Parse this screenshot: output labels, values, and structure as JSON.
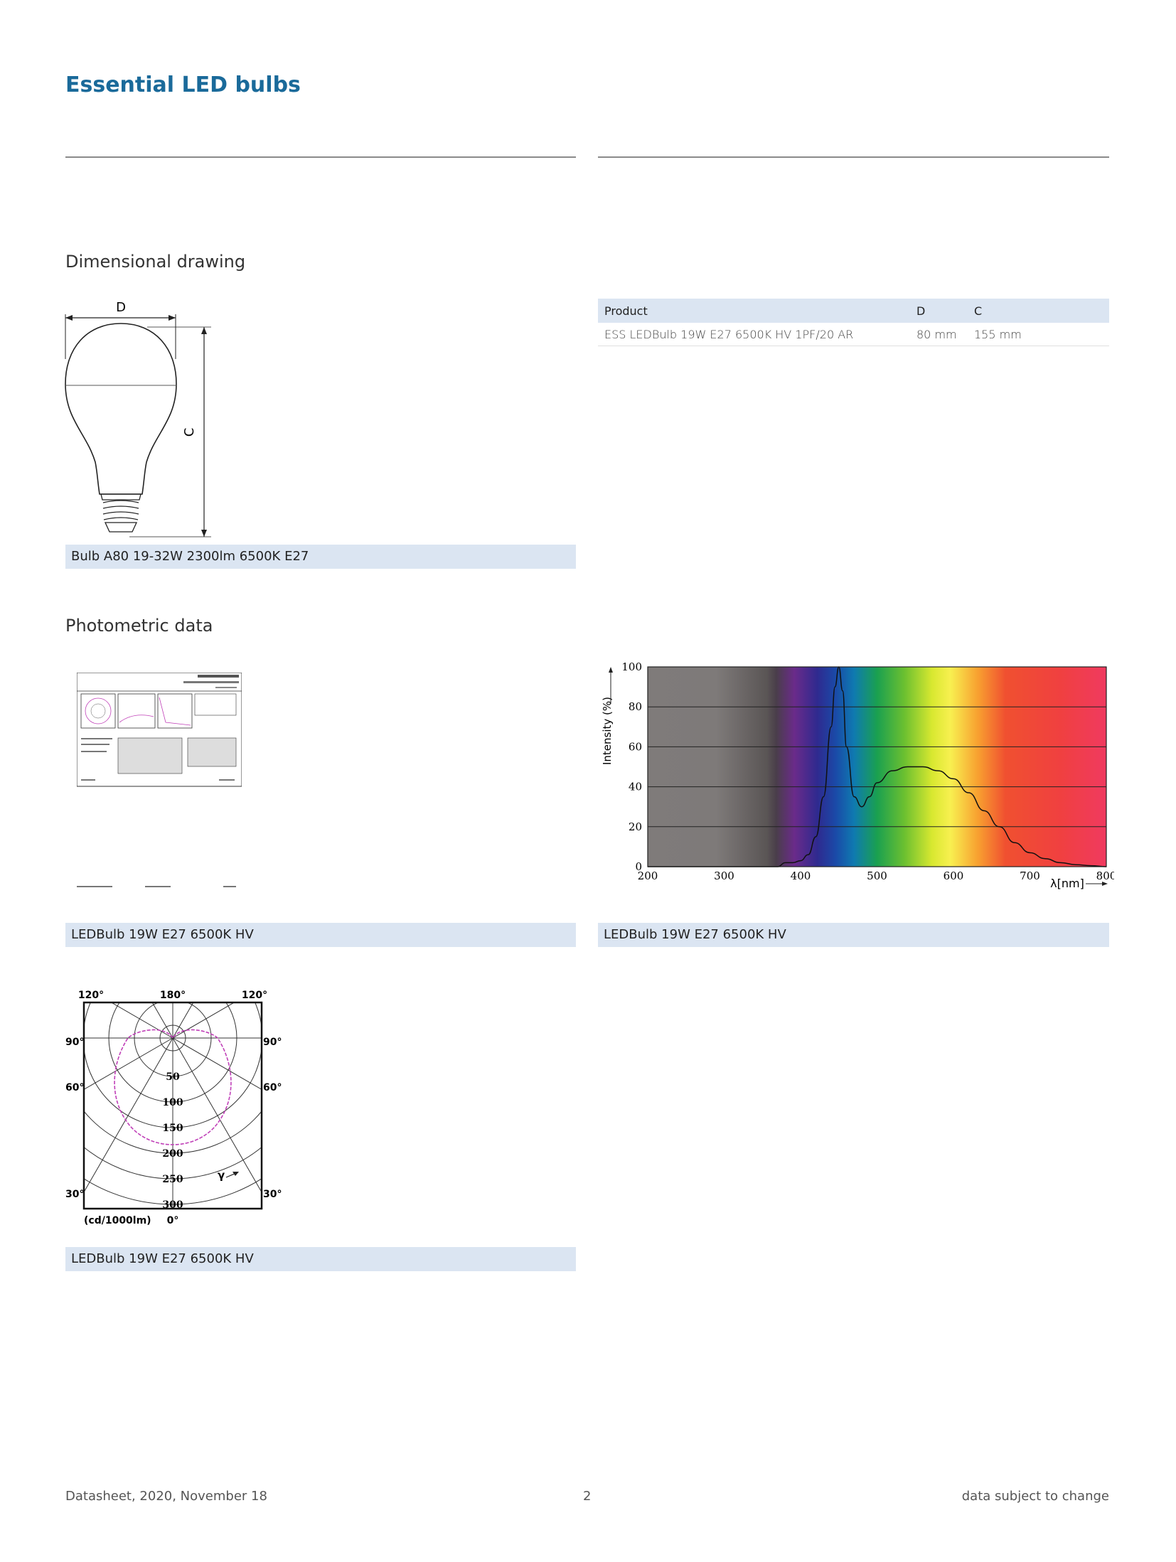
{
  "header": {
    "title": "Essential LED bulbs"
  },
  "dimensional": {
    "heading": "Dimensional drawing",
    "label_d": "D",
    "label_c": "C",
    "caption": "Bulb A80 19-32W 2300lm 6500K E27"
  },
  "product_table": {
    "headers": [
      "Product",
      "D",
      "C"
    ],
    "rows": [
      [
        "ESS LEDBulb 19W E27 6500K HV 1PF/20 AR",
        "80 mm",
        "155 mm"
      ]
    ]
  },
  "photometric": {
    "heading": "Photometric data",
    "caption_left": "LEDBulb 19W E27 6500K HV",
    "caption_right": "LEDBulb 19W E27 6500K HV",
    "caption_polar": "LEDBulb 19W E27 6500K HV"
  },
  "polar": {
    "angles_top": [
      "120°",
      "180°",
      "120°"
    ],
    "angles_side_90": "90°",
    "angles_side_60": "60°",
    "angles_side_30": "30°",
    "angle_bottom": "0°",
    "unit": "(cd/1000lm)",
    "radial_labels": [
      "50",
      "100",
      "150",
      "200",
      "250",
      "300"
    ],
    "gamma": "γ",
    "color_curve": "#c040b8"
  },
  "chart_data": {
    "type": "area",
    "xlabel": "λ[nm]",
    "ylabel": "Intensity (%)",
    "xlim": [
      200,
      800
    ],
    "ylim": [
      0,
      100
    ],
    "x_ticks": [
      200,
      300,
      400,
      500,
      600,
      700,
      800
    ],
    "y_ticks": [
      0,
      20,
      40,
      60,
      80,
      100
    ],
    "grid": true,
    "x": [
      200,
      370,
      380,
      390,
      400,
      410,
      420,
      430,
      440,
      445,
      450,
      455,
      460,
      470,
      480,
      490,
      500,
      520,
      540,
      560,
      580,
      600,
      620,
      640,
      660,
      680,
      700,
      720,
      740,
      760,
      780,
      800
    ],
    "y": [
      0,
      0,
      2,
      2,
      3,
      6,
      15,
      35,
      70,
      90,
      100,
      88,
      60,
      35,
      30,
      35,
      42,
      48,
      50,
      50,
      48,
      44,
      37,
      28,
      20,
      12,
      7,
      4,
      2,
      1,
      0.5,
      0
    ]
  },
  "footer": {
    "left": "Datasheet, 2020, November 18",
    "center": "2",
    "right": "data subject to change"
  }
}
